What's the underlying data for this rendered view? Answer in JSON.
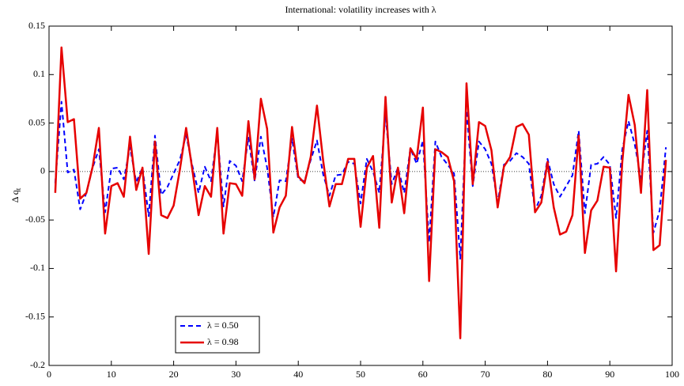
{
  "chart_data": {
    "type": "line",
    "title": "International: volatility increases with λ",
    "ylabel": "Δ q",
    "ylabel_subscript": "t",
    "x": [
      1,
      2,
      3,
      4,
      5,
      6,
      7,
      8,
      9,
      10,
      11,
      12,
      13,
      14,
      15,
      16,
      17,
      18,
      19,
      20,
      21,
      22,
      23,
      24,
      25,
      26,
      27,
      28,
      29,
      30,
      31,
      32,
      33,
      34,
      35,
      36,
      37,
      38,
      39,
      40,
      41,
      42,
      43,
      44,
      45,
      46,
      47,
      48,
      49,
      50,
      51,
      52,
      53,
      54,
      55,
      56,
      57,
      58,
      59,
      60,
      61,
      62,
      63,
      64,
      65,
      66,
      67,
      68,
      69,
      70,
      71,
      72,
      73,
      74,
      75,
      76,
      77,
      78,
      79,
      80,
      81,
      82,
      83,
      84,
      85,
      86,
      87,
      88,
      89,
      90,
      91,
      92,
      93,
      94,
      95,
      96,
      97,
      98,
      99
    ],
    "series": [
      {
        "name": "λ = 0.50",
        "color": "#0000ff",
        "dash": true,
        "values": [
          -0.012,
          0.072,
          -0.001,
          0.002,
          -0.039,
          -0.022,
          0.004,
          0.023,
          -0.042,
          0.003,
          0.004,
          -0.008,
          0.025,
          -0.011,
          0.004,
          -0.046,
          0.037,
          -0.024,
          -0.016,
          -0.002,
          0.012,
          0.038,
          0.006,
          -0.022,
          0.005,
          -0.01,
          0.04,
          -0.036,
          0.011,
          0.006,
          -0.01,
          0.035,
          -0.01,
          0.036,
          0.004,
          -0.047,
          -0.009,
          -0.01,
          0.034,
          -0.008,
          -0.01,
          0.012,
          0.032,
          -0.003,
          -0.025,
          -0.004,
          -0.003,
          0.01,
          0.008,
          -0.033,
          0.013,
          0,
          -0.022,
          0.059,
          -0.013,
          0.004,
          -0.022,
          0.024,
          0.008,
          0.032,
          -0.073,
          0.031,
          0.015,
          0.007,
          -0.002,
          -0.09,
          0.063,
          -0.015,
          0.031,
          0.023,
          0.008,
          -0.032,
          0.007,
          0.011,
          0.019,
          0.015,
          0.008,
          -0.04,
          -0.025,
          0.013,
          -0.013,
          -0.026,
          -0.015,
          -0.004,
          0.042,
          -0.043,
          0.007,
          0.008,
          0.015,
          0.007,
          -0.048,
          0.023,
          0.052,
          0.028,
          -0.007,
          0.042,
          -0.063,
          -0.04,
          0.025
        ]
      },
      {
        "name": "λ = 0.98",
        "color": "#e60000",
        "dash": false,
        "values": [
          -0.022,
          0.128,
          0.051,
          0.054,
          -0.028,
          -0.022,
          0.005,
          0.045,
          -0.064,
          -0.015,
          -0.012,
          -0.026,
          0.036,
          -0.019,
          0.004,
          -0.085,
          0.031,
          -0.045,
          -0.048,
          -0.035,
          0.002,
          0.045,
          0.002,
          -0.045,
          -0.015,
          -0.026,
          0.045,
          -0.064,
          -0.012,
          -0.013,
          -0.025,
          0.052,
          -0.008,
          0.075,
          0.044,
          -0.063,
          -0.037,
          -0.025,
          0.046,
          -0.005,
          -0.012,
          0.015,
          0.068,
          0.011,
          -0.036,
          -0.013,
          -0.013,
          0.013,
          0.013,
          -0.057,
          0.004,
          0.016,
          -0.058,
          0.077,
          -0.032,
          0.004,
          -0.043,
          0.024,
          0.013,
          0.066,
          -0.113,
          0.023,
          0.02,
          0.015,
          -0.01,
          -0.172,
          0.091,
          -0.013,
          0.051,
          0.047,
          0.022,
          -0.037,
          0.005,
          0.015,
          0.046,
          0.049,
          0.038,
          -0.042,
          -0.032,
          0.01,
          -0.037,
          -0.065,
          -0.062,
          -0.045,
          0.037,
          -0.084,
          -0.04,
          -0.03,
          0.005,
          0.004,
          -0.103,
          0.01,
          0.079,
          0.048,
          -0.022,
          0.084,
          -0.081,
          -0.076,
          0.012
        ]
      }
    ],
    "xlim": [
      0,
      100
    ],
    "ylim": [
      -0.2,
      0.15
    ],
    "xticks": [
      0,
      10,
      20,
      30,
      40,
      50,
      60,
      70,
      80,
      90,
      100
    ],
    "yticks": [
      -0.2,
      -0.15,
      -0.1,
      -0.05,
      0,
      0.05,
      0.1,
      0.15
    ],
    "zero_line": true,
    "legend": "lower-left"
  }
}
